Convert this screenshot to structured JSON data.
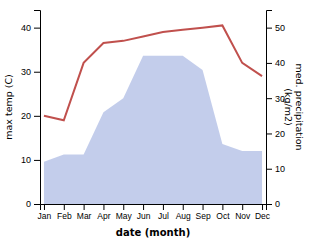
{
  "chart_data": {
    "type": "line",
    "categories": [
      "Jan",
      "Feb",
      "Mar",
      "Apr",
      "May",
      "Jun",
      "Jul",
      "Aug",
      "Sep",
      "Oct",
      "Nov",
      "Dec"
    ],
    "series": [
      {
        "type": "area",
        "color": "#b8c4e8",
        "axis": "y2",
        "values": [
          12.0,
          14.0,
          14.0,
          26.0,
          30.0,
          42.0,
          42.0,
          42.0,
          38.0,
          17.0,
          15.0,
          15.0
        ]
      },
      {
        "type": "line",
        "color": "#c0504d",
        "values": [
          20.0,
          19.0,
          32.0,
          36.5,
          37.0,
          38.0,
          39.0,
          39.5,
          40.0,
          40.5,
          32.0,
          29.0
        ]
      }
    ],
    "xlabel": "date (month)",
    "ylabel": "max temp (C)",
    "y2label": "med. precipitation\n(kg/m2)",
    "ylim": [
      0,
      44
    ],
    "yticks": [
      0,
      10,
      20,
      30,
      40
    ],
    "y2lim": [
      0,
      55
    ],
    "y2ticks": [
      0,
      10,
      20,
      30,
      40,
      50
    ]
  }
}
